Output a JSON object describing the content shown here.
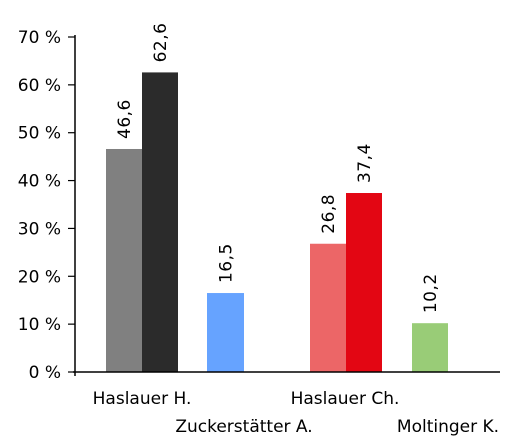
{
  "chart_data": {
    "type": "bar",
    "ylim": [
      0,
      70
    ],
    "y_ticks": [
      0,
      10,
      20,
      30,
      40,
      50,
      60,
      70
    ],
    "y_tick_labels": [
      "0 %",
      "10 %",
      "20 %",
      "30 %",
      "40 %",
      "50 %",
      "60 %",
      "70 %"
    ],
    "grid": false,
    "categories": [
      "Haslauer H.",
      "Zuckerstätter A.",
      "Haslauer Ch.",
      "Moltinger K."
    ],
    "bars": [
      {
        "category": "Haslauer H.",
        "value": 46.6,
        "label": "46,6",
        "color": "#808080"
      },
      {
        "category": "Haslauer H.",
        "value": 62.6,
        "label": "62,6",
        "color": "#2b2b2b"
      },
      {
        "category": "Zuckerstätter A.",
        "value": 16.5,
        "label": "16,5",
        "color": "#66a3ff"
      },
      {
        "category": "Haslauer Ch.",
        "value": 26.8,
        "label": "26,8",
        "color": "#ec6667"
      },
      {
        "category": "Haslauer Ch.",
        "value": 37.4,
        "label": "37,4",
        "color": "#e30613"
      },
      {
        "category": "Moltinger K.",
        "value": 10.2,
        "label": "10,2",
        "color": "#99cc77"
      }
    ]
  }
}
